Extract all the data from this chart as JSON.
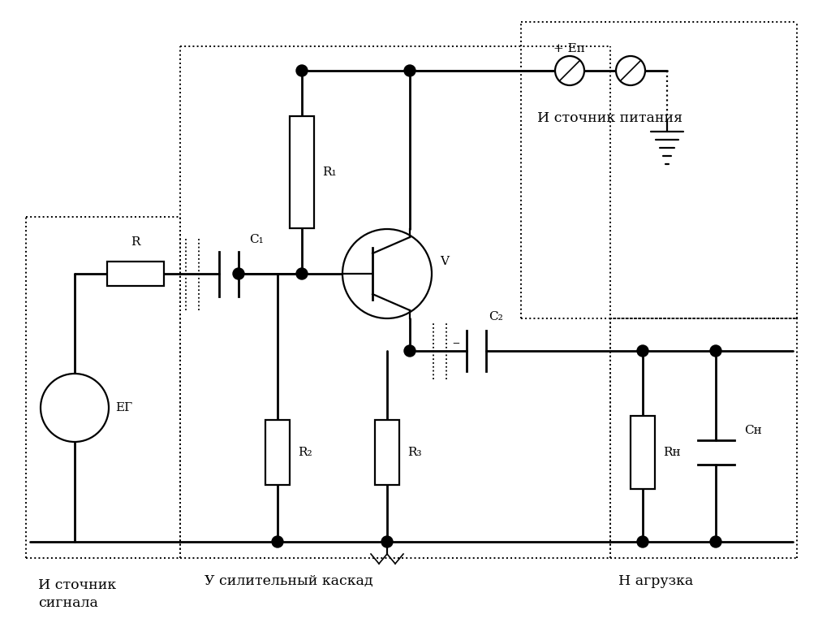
{
  "bg_color": "#ffffff",
  "line_color": "#000000",
  "labels": {
    "R": "R",
    "R1": "R₁",
    "R2": "R₂",
    "R3": "R₃",
    "RH": "Rн",
    "C1": "C₁",
    "C2": "C₂",
    "CH": "Cн",
    "V": "V",
    "EG": "EГ",
    "EP": "+ Eп",
    "minus": "–",
    "src_signal": "И сточник\nсигнала",
    "amplifier": "У силительный каскад",
    "power_src": "И сточник питания",
    "load": "Н агрузка"
  },
  "figsize": [
    10.24,
    7.67
  ],
  "dpi": 100
}
